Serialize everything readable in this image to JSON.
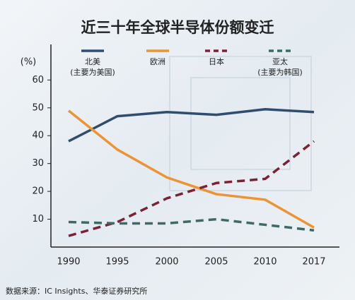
{
  "chart_data": {
    "type": "line",
    "title": "近三十年全球半导体份额变迁",
    "y_label": "(%)",
    "source": "数据来源：IC Insights、华泰证券研究所",
    "categories": [
      "1990",
      "1995",
      "2000",
      "2005",
      "2010",
      "2017"
    ],
    "series": [
      {
        "name": "北美",
        "note": "(主要为美国)",
        "color": "#2f4d6e",
        "dashed": false,
        "values": [
          38,
          47,
          48.5,
          47.5,
          49.5,
          48.5
        ]
      },
      {
        "name": "欧洲",
        "color": "#ec9433",
        "dashed": false,
        "values": [
          49,
          35,
          25,
          19,
          17,
          7
        ]
      },
      {
        "name": "日本",
        "color": "#7c2133",
        "dashed": true,
        "values": [
          4,
          9,
          17.5,
          23,
          24.5,
          38
        ]
      },
      {
        "name": "亚太",
        "note": "(主要为韩国)",
        "color": "#3d6a66",
        "dashed": true,
        "values": [
          9,
          8.5,
          8.5,
          10,
          8,
          6
        ]
      }
    ],
    "ylim": [
      0,
      72
    ],
    "yticks": [
      10,
      20,
      30,
      40,
      50,
      60
    ]
  }
}
